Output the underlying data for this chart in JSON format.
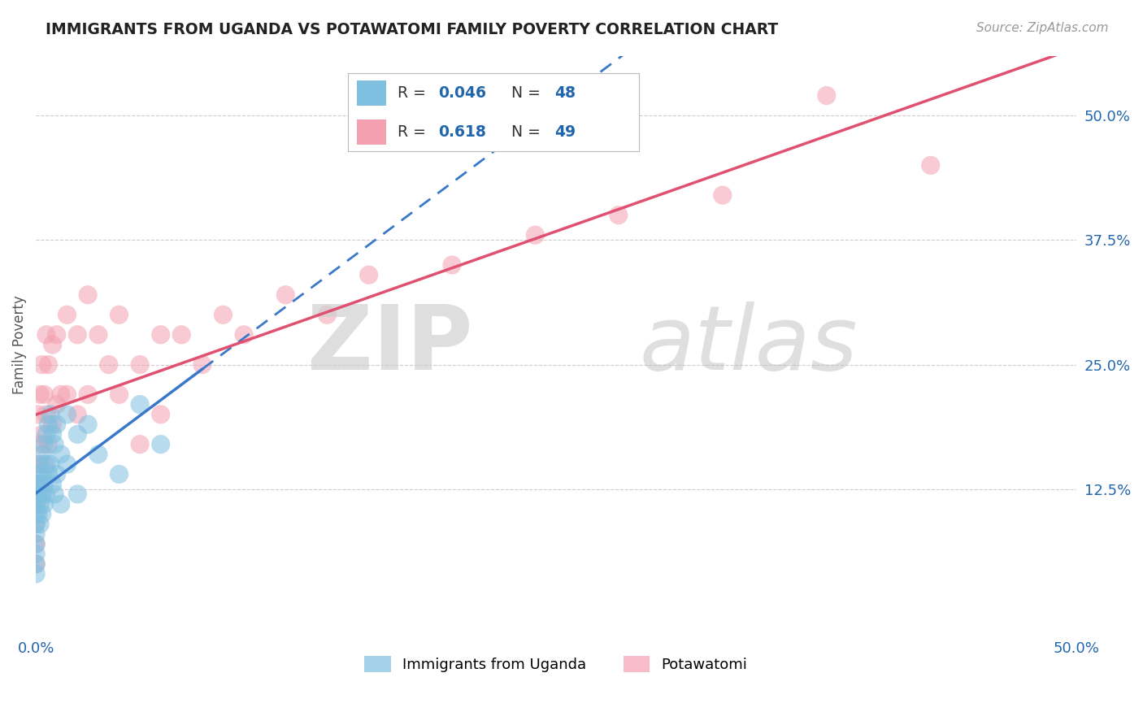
{
  "title": "IMMIGRANTS FROM UGANDA VS POTAWATOMI FAMILY POVERTY CORRELATION CHART",
  "source": "Source: ZipAtlas.com",
  "ylabel": "Family Poverty",
  "blue_color": "#7fbfdf",
  "pink_color": "#f4a0b0",
  "blue_line_color": "#3a78c9",
  "pink_line_color": "#e05070",
  "xlim": [
    0.0,
    0.5
  ],
  "ylim": [
    -0.02,
    0.56
  ],
  "ytick_vals": [
    0.125,
    0.25,
    0.375,
    0.5
  ],
  "ytick_labels": [
    "12.5%",
    "25.0%",
    "37.5%",
    "50.0%"
  ],
  "watermark_zip": "ZIP",
  "watermark_atlas": "atlas",
  "legend_blue_r": "0.046",
  "legend_blue_n": "48",
  "legend_pink_r": "0.618",
  "legend_pink_n": "49",
  "uganda_x": [
    0.0,
    0.0,
    0.0,
    0.0,
    0.0,
    0.0,
    0.0,
    0.0,
    0.0,
    0.0,
    0.001,
    0.001,
    0.001,
    0.002,
    0.002,
    0.002,
    0.002,
    0.003,
    0.003,
    0.003,
    0.003,
    0.004,
    0.004,
    0.004,
    0.005,
    0.005,
    0.005,
    0.006,
    0.006,
    0.007,
    0.007,
    0.008,
    0.008,
    0.009,
    0.009,
    0.01,
    0.01,
    0.012,
    0.012,
    0.015,
    0.015,
    0.02,
    0.02,
    0.025,
    0.03,
    0.04,
    0.05,
    0.06
  ],
  "uganda_y": [
    0.1,
    0.09,
    0.08,
    0.07,
    0.12,
    0.11,
    0.13,
    0.06,
    0.05,
    0.04,
    0.14,
    0.12,
    0.1,
    0.15,
    0.13,
    0.11,
    0.09,
    0.16,
    0.14,
    0.12,
    0.1,
    0.17,
    0.13,
    0.11,
    0.18,
    0.15,
    0.12,
    0.19,
    0.14,
    0.2,
    0.15,
    0.18,
    0.13,
    0.17,
    0.12,
    0.19,
    0.14,
    0.16,
    0.11,
    0.2,
    0.15,
    0.18,
    0.12,
    0.19,
    0.16,
    0.14,
    0.21,
    0.17
  ],
  "potawatomi_x": [
    0.0,
    0.0,
    0.0,
    0.0,
    0.0,
    0.001,
    0.001,
    0.002,
    0.002,
    0.003,
    0.003,
    0.004,
    0.004,
    0.005,
    0.005,
    0.006,
    0.006,
    0.008,
    0.008,
    0.01,
    0.01,
    0.012,
    0.015,
    0.015,
    0.02,
    0.02,
    0.025,
    0.025,
    0.03,
    0.035,
    0.04,
    0.04,
    0.05,
    0.05,
    0.06,
    0.06,
    0.07,
    0.08,
    0.09,
    0.1,
    0.12,
    0.14,
    0.16,
    0.2,
    0.24,
    0.28,
    0.33,
    0.38,
    0.43
  ],
  "potawatomi_y": [
    0.13,
    0.11,
    0.09,
    0.07,
    0.05,
    0.2,
    0.15,
    0.22,
    0.17,
    0.25,
    0.18,
    0.22,
    0.15,
    0.28,
    0.2,
    0.25,
    0.17,
    0.27,
    0.19,
    0.28,
    0.21,
    0.22,
    0.3,
    0.22,
    0.28,
    0.2,
    0.32,
    0.22,
    0.28,
    0.25,
    0.3,
    0.22,
    0.25,
    0.17,
    0.28,
    0.2,
    0.28,
    0.25,
    0.3,
    0.28,
    0.32,
    0.3,
    0.34,
    0.35,
    0.38,
    0.4,
    0.42,
    0.52,
    0.45
  ]
}
